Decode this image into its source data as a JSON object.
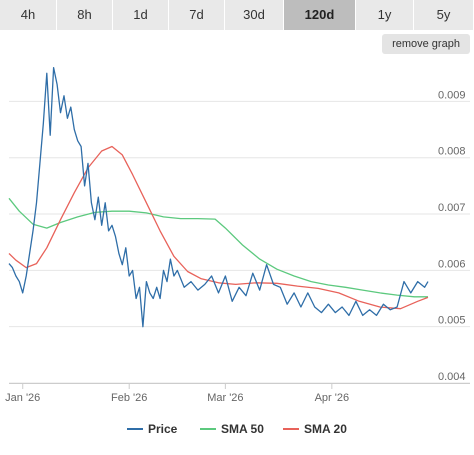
{
  "range_tabs": [
    {
      "label": "4h",
      "active": false
    },
    {
      "label": "8h",
      "active": false
    },
    {
      "label": "1d",
      "active": false
    },
    {
      "label": "7d",
      "active": false
    },
    {
      "label": "30d",
      "active": false
    },
    {
      "label": "120d",
      "active": true
    },
    {
      "label": "1y",
      "active": false
    },
    {
      "label": "5y",
      "active": false
    }
  ],
  "remove_graph_label": "remove graph",
  "colors": {
    "price": "#2f6ea8",
    "sma50": "#5cc97e",
    "sma20": "#e8625a",
    "grid": "#e6e6e6"
  },
  "chart_data": {
    "type": "line",
    "title": "",
    "xlabel": "",
    "ylabel": "",
    "ylim": [
      0.004,
      0.0097
    ],
    "xlim": [
      "2025-12-28",
      "2026-04-29"
    ],
    "y_ticks": [
      "0.004",
      "0.005",
      "0.006",
      "0.007",
      "0.008",
      "0.009"
    ],
    "x_ticks": [
      {
        "date": "2026-01-01",
        "label": "Jan '26"
      },
      {
        "date": "2026-02-01",
        "label": "Feb '26"
      },
      {
        "date": "2026-03-01",
        "label": "Mar '26"
      },
      {
        "date": "2026-04-01",
        "label": "Apr '26"
      }
    ],
    "grid": true,
    "legend_position": "bottom",
    "series": [
      {
        "name": "Price",
        "color": "#2f6ea8",
        "x": [
          "2025-12-28",
          "2025-12-29",
          "2025-12-30",
          "2025-12-31",
          "2026-01-01",
          "2026-01-02",
          "2026-01-03",
          "2026-01-04",
          "2026-01-05",
          "2026-01-06",
          "2026-01-07",
          "2026-01-08",
          "2026-01-09",
          "2026-01-10",
          "2026-01-11",
          "2026-01-12",
          "2026-01-13",
          "2026-01-14",
          "2026-01-15",
          "2026-01-16",
          "2026-01-17",
          "2026-01-18",
          "2026-01-19",
          "2026-01-20",
          "2026-01-21",
          "2026-01-22",
          "2026-01-23",
          "2026-01-24",
          "2026-01-25",
          "2026-01-26",
          "2026-01-27",
          "2026-01-28",
          "2026-01-29",
          "2026-01-30",
          "2026-01-31",
          "2026-02-01",
          "2026-02-02",
          "2026-02-03",
          "2026-02-04",
          "2026-02-05",
          "2026-02-06",
          "2026-02-07",
          "2026-02-08",
          "2026-02-09",
          "2026-02-10",
          "2026-02-11",
          "2026-02-12",
          "2026-02-13",
          "2026-02-14",
          "2026-02-15",
          "2026-02-17",
          "2026-02-19",
          "2026-02-21",
          "2026-02-23",
          "2026-02-25",
          "2026-02-27",
          "2026-03-01",
          "2026-03-03",
          "2026-03-05",
          "2026-03-07",
          "2026-03-09",
          "2026-03-11",
          "2026-03-13",
          "2026-03-15",
          "2026-03-17",
          "2026-03-19",
          "2026-03-21",
          "2026-03-23",
          "2026-03-25",
          "2026-03-27",
          "2026-03-29",
          "2026-03-31",
          "2026-04-02",
          "2026-04-04",
          "2026-04-06",
          "2026-04-08",
          "2026-04-10",
          "2026-04-12",
          "2026-04-14",
          "2026-04-16",
          "2026-04-18",
          "2026-04-20",
          "2026-04-22",
          "2026-04-24",
          "2026-04-26",
          "2026-04-28",
          "2026-04-29"
        ],
        "values": [
          0.00612,
          0.00605,
          0.0059,
          0.0058,
          0.0056,
          0.0059,
          0.0063,
          0.0067,
          0.0072,
          0.0079,
          0.0086,
          0.0095,
          0.0084,
          0.0096,
          0.0093,
          0.0088,
          0.0091,
          0.0087,
          0.0089,
          0.0085,
          0.0083,
          0.0082,
          0.0075,
          0.0079,
          0.0072,
          0.0069,
          0.0073,
          0.0068,
          0.0072,
          0.0067,
          0.0068,
          0.0066,
          0.0063,
          0.0061,
          0.0064,
          0.0059,
          0.006,
          0.0055,
          0.0057,
          0.005,
          0.0058,
          0.0056,
          0.0055,
          0.0057,
          0.0055,
          0.006,
          0.0058,
          0.0062,
          0.0059,
          0.006,
          0.0057,
          0.0058,
          0.00565,
          0.00575,
          0.0059,
          0.0056,
          0.0059,
          0.00545,
          0.0057,
          0.00555,
          0.00595,
          0.00565,
          0.0061,
          0.00575,
          0.0057,
          0.0054,
          0.0056,
          0.00535,
          0.0056,
          0.00535,
          0.00525,
          0.0054,
          0.00525,
          0.00535,
          0.0052,
          0.00545,
          0.0052,
          0.0053,
          0.0052,
          0.0054,
          0.0053,
          0.00535,
          0.0058,
          0.0056,
          0.0058,
          0.0057,
          0.0058
        ]
      },
      {
        "name": "SMA 50",
        "color": "#5cc97e",
        "x": [
          "2025-12-28",
          "2025-12-31",
          "2026-01-04",
          "2026-01-08",
          "2026-01-12",
          "2026-01-17",
          "2026-01-22",
          "2026-01-27",
          "2026-02-01",
          "2026-02-06",
          "2026-02-11",
          "2026-02-16",
          "2026-02-21",
          "2026-02-26",
          "2026-03-01",
          "2026-03-06",
          "2026-03-11",
          "2026-03-16",
          "2026-03-21",
          "2026-03-26",
          "2026-03-31",
          "2026-04-05",
          "2026-04-10",
          "2026-04-15",
          "2026-04-20",
          "2026-04-25",
          "2026-04-29"
        ],
        "values": [
          0.00728,
          0.00705,
          0.00682,
          0.00675,
          0.00685,
          0.00695,
          0.00703,
          0.00705,
          0.00705,
          0.00702,
          0.00695,
          0.00692,
          0.00692,
          0.00691,
          0.00675,
          0.00645,
          0.0062,
          0.00602,
          0.0059,
          0.0058,
          0.00574,
          0.0057,
          0.00565,
          0.0056,
          0.00556,
          0.00553,
          0.00553
        ]
      },
      {
        "name": "SMA 20",
        "color": "#e8625a",
        "x": [
          "2025-12-28",
          "2025-12-30",
          "2026-01-02",
          "2026-01-05",
          "2026-01-08",
          "2026-01-12",
          "2026-01-16",
          "2026-01-20",
          "2026-01-24",
          "2026-01-27",
          "2026-01-30",
          "2026-02-02",
          "2026-02-06",
          "2026-02-10",
          "2026-02-14",
          "2026-02-18",
          "2026-02-22",
          "2026-02-27",
          "2026-03-04",
          "2026-03-10",
          "2026-03-16",
          "2026-03-22",
          "2026-03-28",
          "2026-04-03",
          "2026-04-09",
          "2026-04-15",
          "2026-04-21",
          "2026-04-26",
          "2026-04-29"
        ],
        "values": [
          0.0063,
          0.00618,
          0.00605,
          0.00612,
          0.0064,
          0.0069,
          0.00738,
          0.00782,
          0.00812,
          0.0082,
          0.00805,
          0.0077,
          0.0072,
          0.0067,
          0.00625,
          0.00598,
          0.00585,
          0.00578,
          0.00575,
          0.00578,
          0.00577,
          0.00572,
          0.00568,
          0.0056,
          0.00545,
          0.00535,
          0.00532,
          0.00545,
          0.00552
        ]
      }
    ]
  }
}
